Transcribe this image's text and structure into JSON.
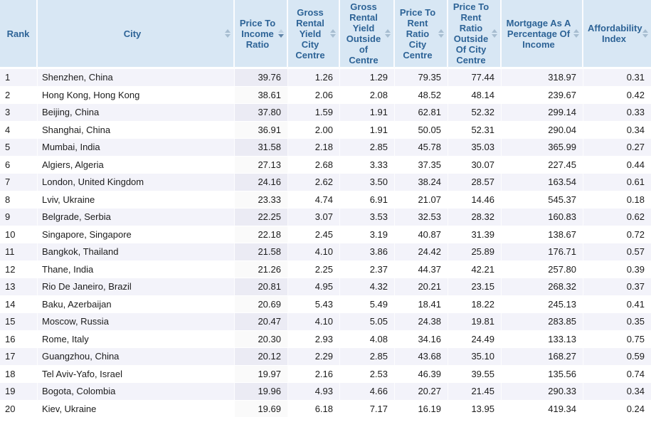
{
  "colors": {
    "header_bg": "#d8e7f4",
    "header_text": "#2d6396",
    "stripe_row_bg": "#f3f3fa",
    "white_row_bg": "#ffffff",
    "sorted_cell_stripe_bg": "#ebebf4",
    "sorted_cell_white_bg": "#fafafa",
    "body_text": "#1c1c1c"
  },
  "table": {
    "columns": [
      {
        "id": "rank",
        "label": "Rank",
        "sortable": false,
        "sort": "none",
        "align": "left"
      },
      {
        "id": "city",
        "label": "City",
        "sortable": true,
        "sort": "none",
        "align": "left"
      },
      {
        "id": "price_to_income_ratio",
        "label": "Price To Income Ratio",
        "sortable": true,
        "sort": "desc",
        "align": "right"
      },
      {
        "id": "gross_rental_yield_city_centre",
        "label": "Gross Rental Yield City Centre",
        "sortable": true,
        "sort": "none",
        "align": "right"
      },
      {
        "id": "gross_rental_yield_outside_of_centre",
        "label": "Gross Rental Yield Outside of Centre",
        "sortable": true,
        "sort": "none",
        "align": "right"
      },
      {
        "id": "price_to_rent_ratio_city_centre",
        "label": "Price To Rent Ratio City Centre",
        "sortable": true,
        "sort": "none",
        "align": "right"
      },
      {
        "id": "price_to_rent_ratio_outside_of_city_centre",
        "label": "Price To Rent Ratio Outside Of City Centre",
        "sortable": true,
        "sort": "none",
        "align": "right"
      },
      {
        "id": "mortgage_as_a_percentage_of_income",
        "label": "Mortgage As A Percentage Of Income",
        "sortable": true,
        "sort": "none",
        "align": "right"
      },
      {
        "id": "affordability_index",
        "label": "Affordability Index",
        "sortable": true,
        "sort": "none",
        "align": "right"
      }
    ],
    "rows": [
      [
        "1",
        "Shenzhen, China",
        "39.76",
        "1.26",
        "1.29",
        "79.35",
        "77.44",
        "318.97",
        "0.31"
      ],
      [
        "2",
        "Hong Kong, Hong Kong",
        "38.61",
        "2.06",
        "2.08",
        "48.52",
        "48.14",
        "239.67",
        "0.42"
      ],
      [
        "3",
        "Beijing, China",
        "37.80",
        "1.59",
        "1.91",
        "62.81",
        "52.32",
        "299.14",
        "0.33"
      ],
      [
        "4",
        "Shanghai, China",
        "36.91",
        "2.00",
        "1.91",
        "50.05",
        "52.31",
        "290.04",
        "0.34"
      ],
      [
        "5",
        "Mumbai, India",
        "31.58",
        "2.18",
        "2.85",
        "45.78",
        "35.03",
        "365.99",
        "0.27"
      ],
      [
        "6",
        "Algiers, Algeria",
        "27.13",
        "2.68",
        "3.33",
        "37.35",
        "30.07",
        "227.45",
        "0.44"
      ],
      [
        "7",
        "London, United Kingdom",
        "24.16",
        "2.62",
        "3.50",
        "38.24",
        "28.57",
        "163.54",
        "0.61"
      ],
      [
        "8",
        "Lviv, Ukraine",
        "23.33",
        "4.74",
        "6.91",
        "21.07",
        "14.46",
        "545.37",
        "0.18"
      ],
      [
        "9",
        "Belgrade, Serbia",
        "22.25",
        "3.07",
        "3.53",
        "32.53",
        "28.32",
        "160.83",
        "0.62"
      ],
      [
        "10",
        "Singapore, Singapore",
        "22.18",
        "2.45",
        "3.19",
        "40.87",
        "31.39",
        "138.67",
        "0.72"
      ],
      [
        "11",
        "Bangkok, Thailand",
        "21.58",
        "4.10",
        "3.86",
        "24.42",
        "25.89",
        "176.71",
        "0.57"
      ],
      [
        "12",
        "Thane, India",
        "21.26",
        "2.25",
        "2.37",
        "44.37",
        "42.21",
        "257.80",
        "0.39"
      ],
      [
        "13",
        "Rio De Janeiro, Brazil",
        "20.81",
        "4.95",
        "4.32",
        "20.21",
        "23.15",
        "268.32",
        "0.37"
      ],
      [
        "14",
        "Baku, Azerbaijan",
        "20.69",
        "5.43",
        "5.49",
        "18.41",
        "18.22",
        "245.13",
        "0.41"
      ],
      [
        "15",
        "Moscow, Russia",
        "20.47",
        "4.10",
        "5.05",
        "24.38",
        "19.81",
        "283.85",
        "0.35"
      ],
      [
        "16",
        "Rome, Italy",
        "20.30",
        "2.93",
        "4.08",
        "34.16",
        "24.49",
        "133.13",
        "0.75"
      ],
      [
        "17",
        "Guangzhou, China",
        "20.12",
        "2.29",
        "2.85",
        "43.68",
        "35.10",
        "168.27",
        "0.59"
      ],
      [
        "18",
        "Tel Aviv-Yafo, Israel",
        "19.97",
        "2.16",
        "2.53",
        "46.39",
        "39.55",
        "135.56",
        "0.74"
      ],
      [
        "19",
        "Bogota, Colombia",
        "19.96",
        "4.93",
        "4.66",
        "20.27",
        "21.45",
        "290.33",
        "0.34"
      ],
      [
        "20",
        "Kiev, Ukraine",
        "19.69",
        "6.18",
        "7.17",
        "16.19",
        "13.95",
        "419.34",
        "0.24"
      ]
    ]
  }
}
